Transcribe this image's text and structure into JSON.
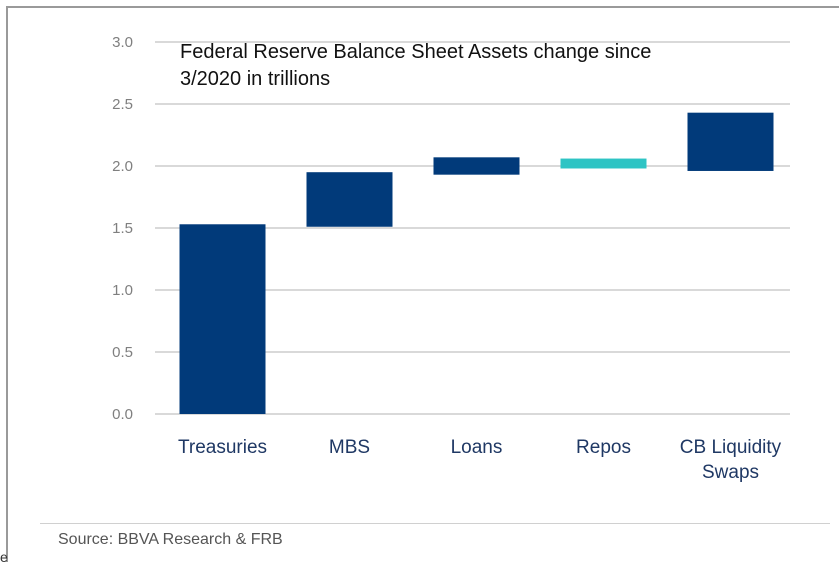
{
  "chart_data": {
    "type": "bar",
    "subtype": "waterfall",
    "title_line1": "Federal Reserve Balance Sheet Assets change since",
    "title_line2": "3/2020 in trillions",
    "categories": [
      "Treasuries",
      "MBS",
      "Loans",
      "Repos",
      "CB Liquidity Swaps"
    ],
    "category_lines": [
      [
        "Treasuries"
      ],
      [
        "MBS"
      ],
      [
        "Loans"
      ],
      [
        "Repos"
      ],
      [
        "CB Liquidity",
        "Swaps"
      ]
    ],
    "bars": [
      {
        "category": "Treasuries",
        "start": 0.0,
        "end": 1.53,
        "color": "#013a7a"
      },
      {
        "category": "MBS",
        "start": 1.51,
        "end": 1.95,
        "color": "#013a7a"
      },
      {
        "category": "Loans",
        "start": 1.93,
        "end": 2.07,
        "color": "#013a7a"
      },
      {
        "category": "Repos",
        "start": 1.98,
        "end": 2.06,
        "color": "#2ec4c4"
      },
      {
        "category": "CB Liquidity Swaps",
        "start": 1.96,
        "end": 2.43,
        "color": "#013a7a"
      }
    ],
    "yticks": [
      "0.0",
      "0.5",
      "1.0",
      "1.5",
      "2.0",
      "2.5",
      "3.0"
    ],
    "ylim": [
      0,
      3.0
    ],
    "grid": true,
    "xlabel": "",
    "ylabel": ""
  },
  "source": "Source: BBVA Research & FRB",
  "corner_glyph": "e"
}
